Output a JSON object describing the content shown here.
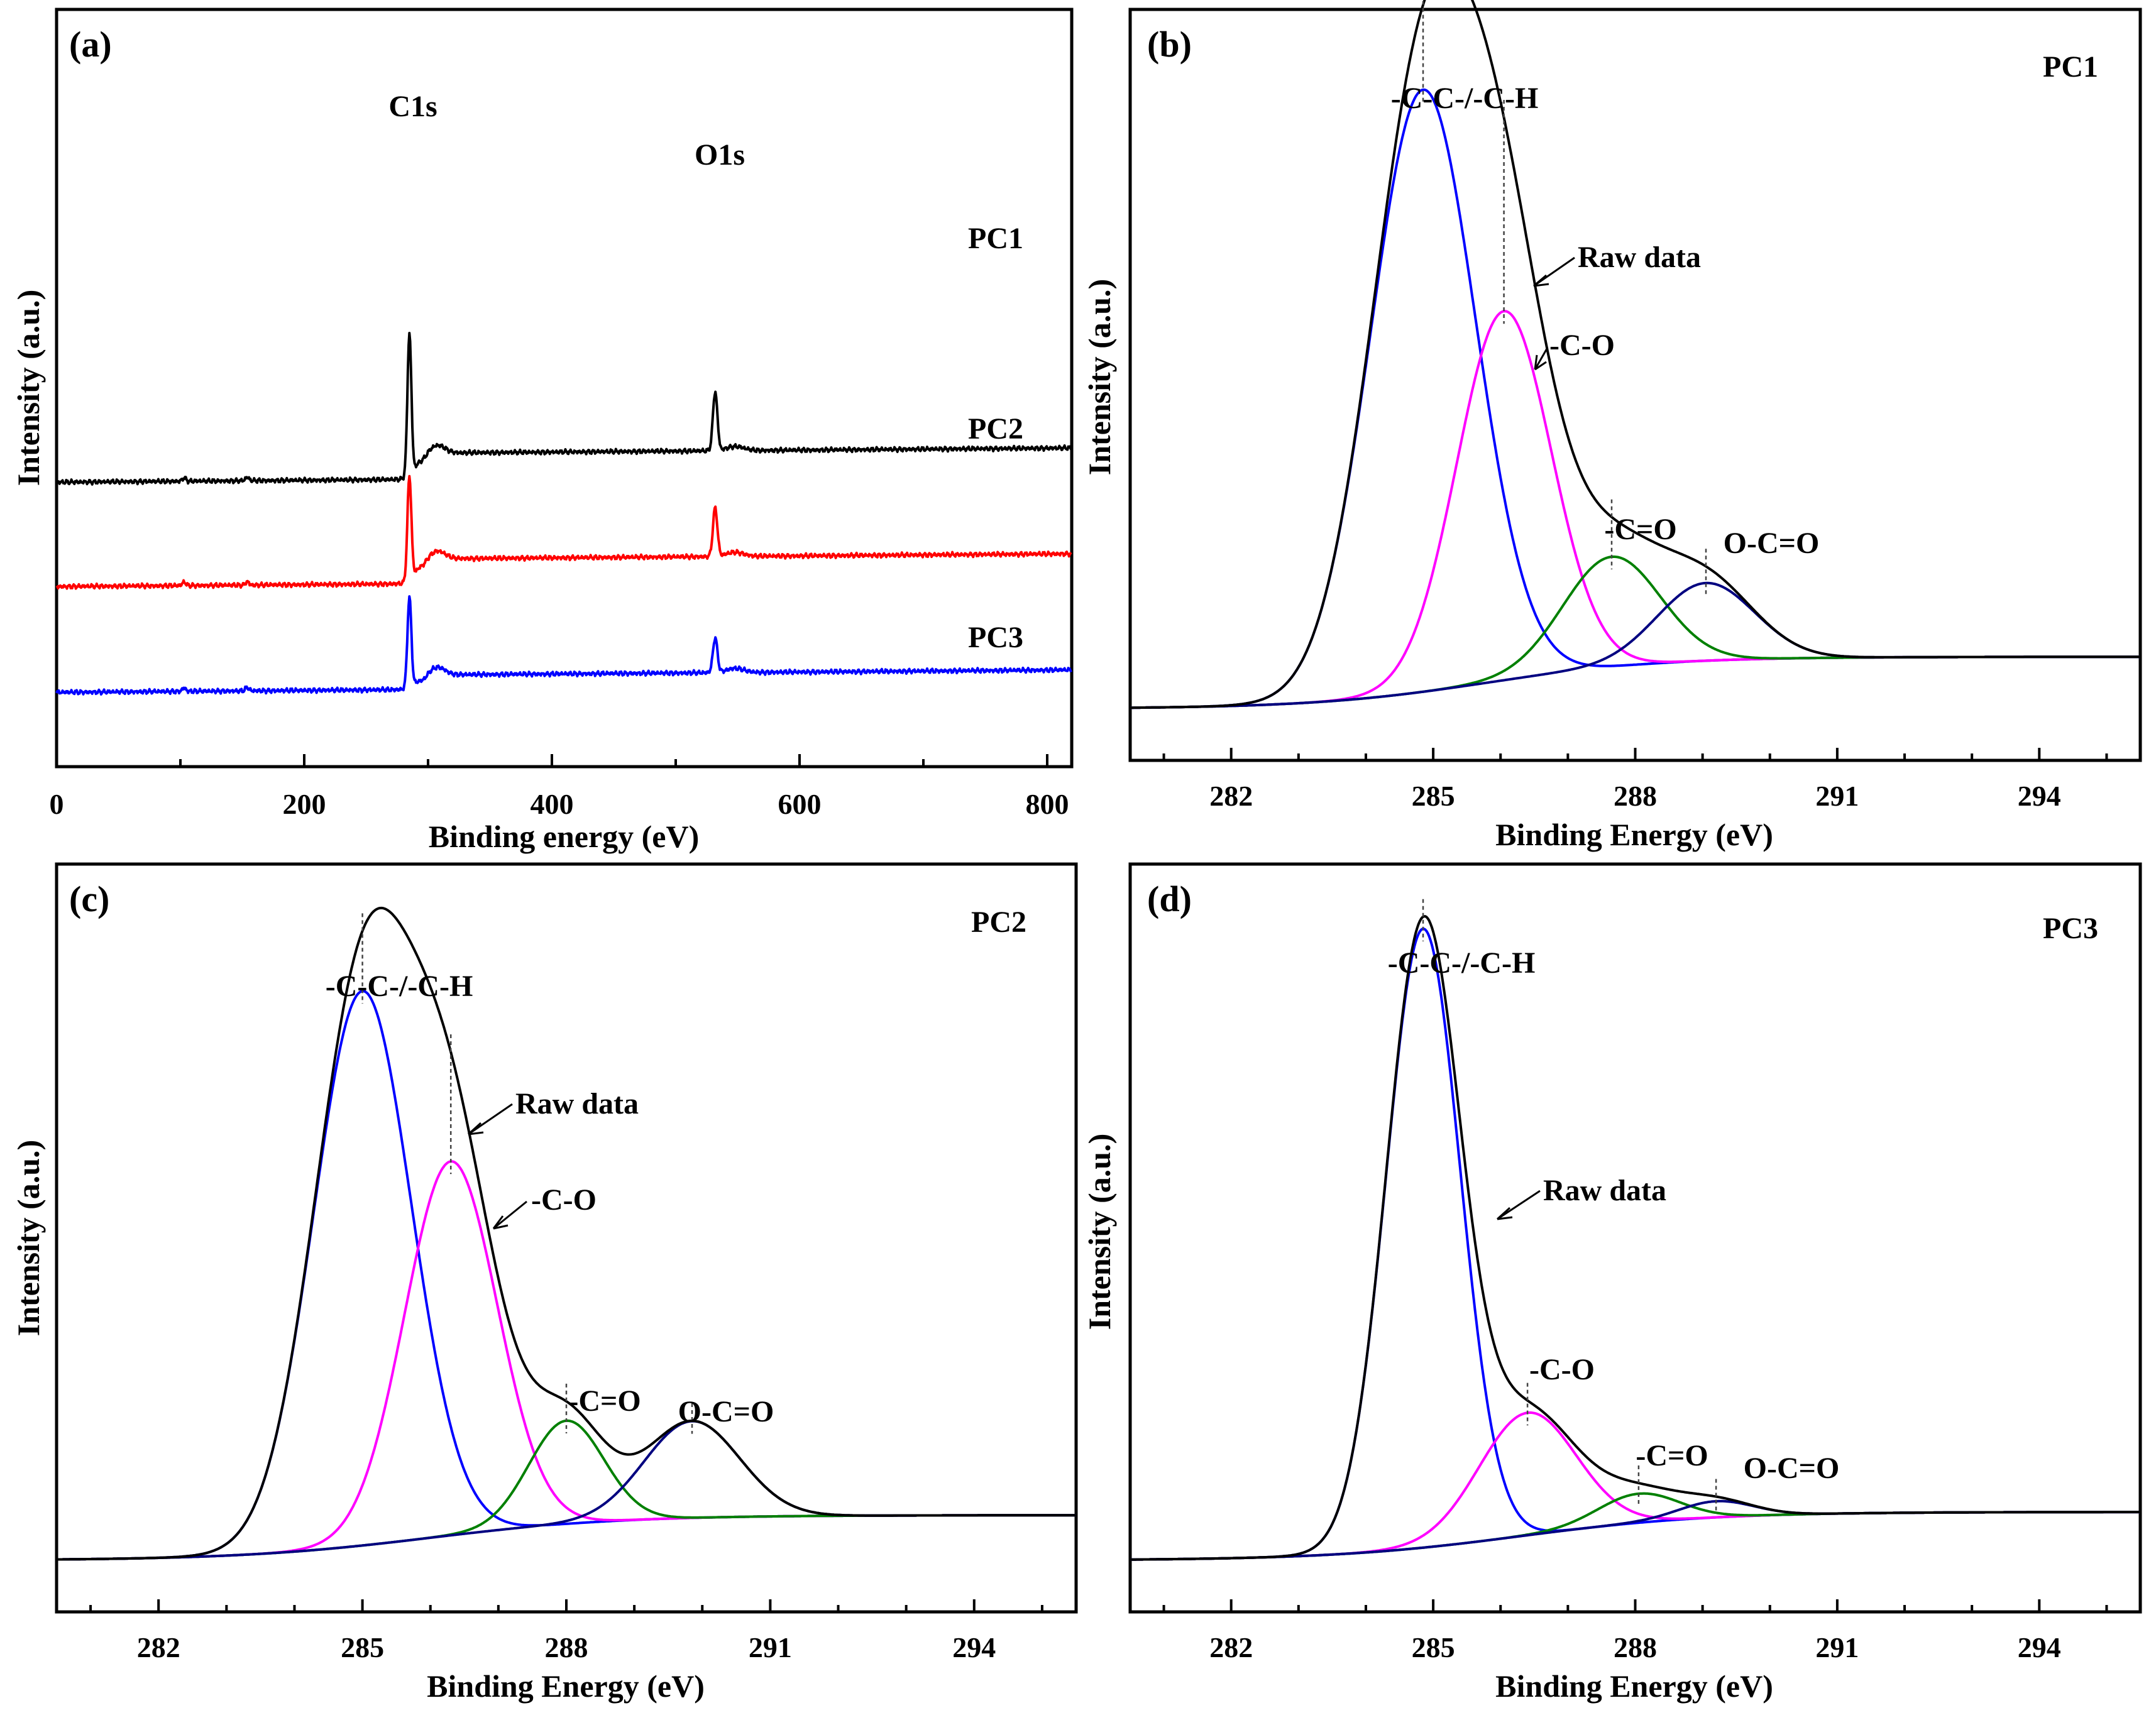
{
  "chart_data": [
    {
      "id": "a",
      "panel_label": "(a)",
      "type": "line",
      "title": "",
      "xlabel": "Binding energy (eV)",
      "ylabel": "Intensity (a.u.)",
      "xlim": [
        0,
        820
      ],
      "xticks": [
        0,
        200,
        400,
        600,
        800
      ],
      "xtick_labels": [
        "0",
        "200",
        "400",
        "600",
        "800"
      ],
      "peak_annotations": [
        {
          "text": "C1s",
          "x": 285
        },
        {
          "text": "O1s",
          "x": 532
        }
      ],
      "series": [
        {
          "name": "PC1",
          "color": "#000000",
          "baseline": 0.7,
          "end_level": 4.9,
          "c_peak": 20.5,
          "o_peak": 8.5
        },
        {
          "name": "PC2",
          "color": "#ff0000",
          "baseline": 0.6,
          "end_level": 4.6,
          "c_peak": 15.0,
          "o_peak": 7.0
        },
        {
          "name": "PC3",
          "color": "#0000ff",
          "baseline": 0.3,
          "end_level": 2.8,
          "c_peak": 13.0,
          "o_peak": 5.0
        }
      ],
      "series_offsets": [
        30,
        15,
        0
      ]
    },
    {
      "id": "b",
      "panel_label": "(b)",
      "sample": "PC1",
      "type": "line",
      "xlabel": "Binding Energy (eV)",
      "ylabel": "Intensity (a.u.)",
      "xlim": [
        280.5,
        295.5
      ],
      "ylim": [
        -8,
        108
      ],
      "xticks": [
        282,
        285,
        288,
        291,
        294
      ],
      "xtick_labels": [
        "282",
        "285",
        "288",
        "291",
        "294"
      ],
      "background": {
        "low": 0,
        "high": 8,
        "step_center": 285.8,
        "step_width": 1.3
      },
      "components": [
        {
          "name": "-C-C-/-C-H",
          "center": 284.85,
          "height": 93,
          "sigma": 0.78,
          "color": "#0000ff"
        },
        {
          "name": "-C-O",
          "center": 286.05,
          "height": 57,
          "sigma": 0.7,
          "color": "#ff00ff"
        },
        {
          "name": "-C=O",
          "center": 287.65,
          "height": 17,
          "sigma": 0.72,
          "color": "#008000"
        },
        {
          "name": "O-C=O",
          "center": 289.05,
          "height": 12,
          "sigma": 0.72,
          "color": "#000080"
        }
      ],
      "raw_label": "Raw data"
    },
    {
      "id": "c",
      "panel_label": "(c)",
      "sample": "PC2",
      "type": "line",
      "xlabel": "Binding Energy (eV)",
      "ylabel": "Intensity (a.u.)",
      "xlim": [
        280.5,
        295.5
      ],
      "ylim": [
        -8,
        108
      ],
      "xticks": [
        282,
        285,
        288,
        291,
        294
      ],
      "xtick_labels": [
        "282",
        "285",
        "288",
        "291",
        "294"
      ],
      "background": {
        "low": 0,
        "high": 7,
        "step_center": 286.0,
        "step_width": 1.4
      },
      "components": [
        {
          "name": "-C-C-/-C-H",
          "center": 285.0,
          "height": 86,
          "sigma": 0.72,
          "color": "#0000ff"
        },
        {
          "name": "-C-O",
          "center": 286.3,
          "height": 58,
          "sigma": 0.68,
          "color": "#ff00ff"
        },
        {
          "name": "-C=O",
          "center": 288.0,
          "height": 16,
          "sigma": 0.55,
          "color": "#008000"
        },
        {
          "name": "O-C=O",
          "center": 289.85,
          "height": 15,
          "sigma": 0.7,
          "color": "#000080"
        }
      ],
      "raw_label": "Raw data"
    },
    {
      "id": "d",
      "panel_label": "(d)",
      "sample": "PC3",
      "type": "line",
      "xlabel": "Binding Energy (eV)",
      "ylabel": "Intensity (a.u.)",
      "xlim": [
        280.5,
        295.5
      ],
      "ylim": [
        -8,
        108
      ],
      "xticks": [
        282,
        285,
        288,
        291,
        294
      ],
      "xtick_labels": [
        "282",
        "285",
        "288",
        "291",
        "294"
      ],
      "background": {
        "low": 0,
        "high": 7.5,
        "step_center": 286.3,
        "step_width": 1.4
      },
      "components": [
        {
          "name": "-C-C-/-C-H",
          "center": 284.85,
          "height": 96,
          "sigma": 0.55,
          "color": "#0000ff"
        },
        {
          "name": "-C-O",
          "center": 286.4,
          "height": 19,
          "sigma": 0.72,
          "color": "#ff00ff"
        },
        {
          "name": "-C=O",
          "center": 288.05,
          "height": 4.5,
          "sigma": 0.6,
          "color": "#008000"
        },
        {
          "name": "O-C=O",
          "center": 289.2,
          "height": 2.5,
          "sigma": 0.55,
          "color": "#000080"
        }
      ],
      "raw_label": "Raw data"
    }
  ]
}
